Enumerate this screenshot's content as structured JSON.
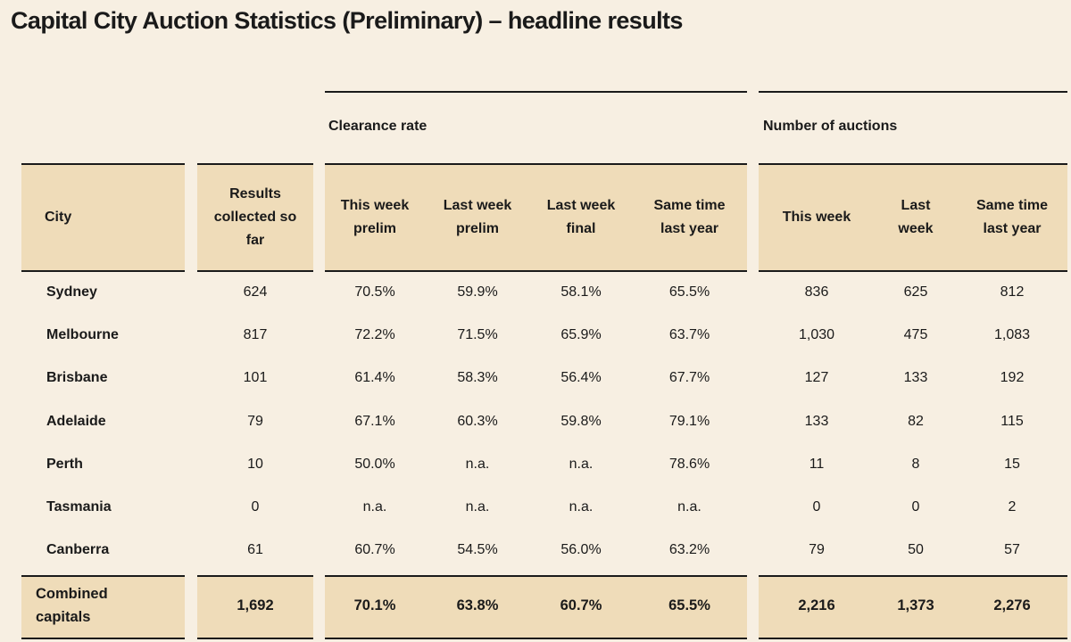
{
  "title": "Capital City Auction Statistics (Preliminary) – headline results",
  "groups": {
    "clearance_rate": "Clearance rate",
    "number_of_auctions": "Number of auctions"
  },
  "headers": {
    "city": "City",
    "results_collected": "Results collected so far",
    "cr_this_week_prelim": "This week prelim",
    "cr_last_week_prelim": "Last week prelim",
    "cr_last_week_final": "Last week final",
    "cr_same_time_last_year": "Same time last year",
    "na_this_week": "This week",
    "na_last_week": "Last week",
    "na_same_time_last_year": "Same time last year"
  },
  "rows": [
    {
      "city": "Sydney",
      "results": "624",
      "cr_twp": "70.5%",
      "cr_lwp": "59.9%",
      "cr_lwf": "58.1%",
      "cr_stly": "65.5%",
      "na_tw": "836",
      "na_lw": "625",
      "na_stly": "812"
    },
    {
      "city": "Melbourne",
      "results": "817",
      "cr_twp": "72.2%",
      "cr_lwp": "71.5%",
      "cr_lwf": "65.9%",
      "cr_stly": "63.7%",
      "na_tw": "1,030",
      "na_lw": "475",
      "na_stly": "1,083"
    },
    {
      "city": "Brisbane",
      "results": "101",
      "cr_twp": "61.4%",
      "cr_lwp": "58.3%",
      "cr_lwf": "56.4%",
      "cr_stly": "67.7%",
      "na_tw": "127",
      "na_lw": "133",
      "na_stly": "192"
    },
    {
      "city": "Adelaide",
      "results": "79",
      "cr_twp": "67.1%",
      "cr_lwp": "60.3%",
      "cr_lwf": "59.8%",
      "cr_stly": "79.1%",
      "na_tw": "133",
      "na_lw": "82",
      "na_stly": "115"
    },
    {
      "city": "Perth",
      "results": "10",
      "cr_twp": "50.0%",
      "cr_lwp": "n.a.",
      "cr_lwf": "n.a.",
      "cr_stly": "78.6%",
      "na_tw": "11",
      "na_lw": "8",
      "na_stly": "15"
    },
    {
      "city": "Tasmania",
      "results": "0",
      "cr_twp": "n.a.",
      "cr_lwp": "n.a.",
      "cr_lwf": "n.a.",
      "cr_stly": "n.a.",
      "na_tw": "0",
      "na_lw": "0",
      "na_stly": "2"
    },
    {
      "city": "Canberra",
      "results": "61",
      "cr_twp": "60.7%",
      "cr_lwp": "54.5%",
      "cr_lwf": "56.0%",
      "cr_stly": "63.2%",
      "na_tw": "79",
      "na_lw": "50",
      "na_stly": "57"
    }
  ],
  "total": {
    "city": "Combined capitals",
    "results": "1,692",
    "cr_twp": "70.1%",
    "cr_lwp": "63.8%",
    "cr_lwf": "60.7%",
    "cr_stly": "65.5%",
    "na_tw": "2,216",
    "na_lw": "1,373",
    "na_stly": "2,276"
  },
  "colors": {
    "background": "#f7efe2",
    "band": "#efdcb9",
    "rule": "#1a1a1a",
    "text": "#1a1a1a"
  }
}
